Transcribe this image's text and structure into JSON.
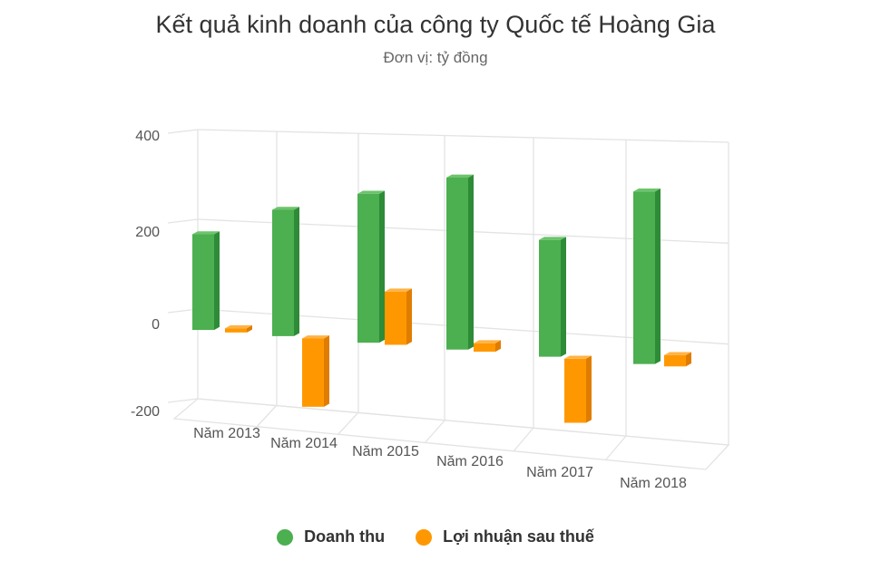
{
  "chart_data": {
    "type": "bar",
    "title": "Kết quả kinh doanh của công ty Quốc tế Hoàng Gia",
    "subtitle": "Đơn vị: tỷ đồng",
    "categories": [
      "Năm 2013",
      "Năm 2014",
      "Năm 2015",
      "Năm 2016",
      "Năm 2017",
      "Năm 2018"
    ],
    "series": [
      {
        "name": "Doanh thu",
        "values": [
          203,
          268,
          316,
          365,
          248,
          366
        ]
      },
      {
        "name": "Lợi nhuận sau thuế",
        "values": [
          9,
          -145,
          113,
          18,
          -136,
          24
        ]
      }
    ],
    "ylim": [
      -200,
      400
    ],
    "yticks": [
      400,
      200,
      0,
      -200
    ],
    "grid": true,
    "legend": "bottom",
    "three_d": true,
    "colors": {
      "Doanh thu": {
        "front": "#4caf50",
        "side": "#2e8b37",
        "top": "#6cc46c"
      },
      "Lợi nhuận sau thuế": {
        "front": "#ff9800",
        "side": "#e07d00",
        "top": "#ffb347"
      }
    }
  }
}
